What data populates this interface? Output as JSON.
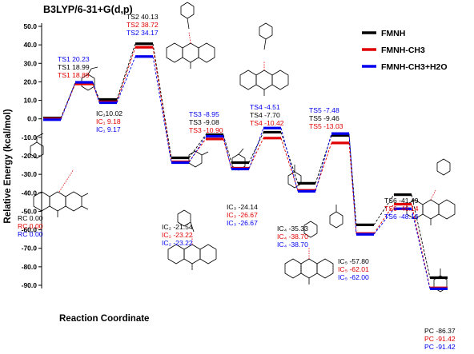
{
  "chart_data": {
    "type": "line",
    "title": "B3LYP/6-31+G(d,p)",
    "xlabel": "Reaction Coordinate",
    "ylabel": "Relative Energy (kcal/mol)",
    "ylim": [
      -95,
      55
    ],
    "yticks": [
      "50.0",
      "40.0",
      "30.0",
      "20.0",
      "10.0",
      "0.0",
      "-10.0",
      "-20.0",
      "-30.0",
      "-40.0",
      "-50.0",
      "-60.0",
      "-70.0",
      "-80.0",
      "-90.0"
    ],
    "stationary_points": [
      "RC",
      "TS1",
      "IC1",
      "TS2",
      "IC2",
      "TS3",
      "IC3",
      "TS4",
      "IC4",
      "TS5",
      "IC5",
      "TS6",
      "PC"
    ],
    "series": [
      {
        "name": "FMNH",
        "color": "#000000",
        "values": [
          0.0,
          18.99,
          10.02,
          40.13,
          -21.54,
          -9.08,
          -24.14,
          -7.7,
          -35.33,
          -9.46,
          -57.8,
          -41.49,
          -86.37
        ]
      },
      {
        "name": "FMNH-CH3",
        "color": "#e00000",
        "values": [
          0.0,
          18.89,
          9.18,
          38.72,
          -23.22,
          -10.9,
          -26.67,
          -10.42,
          -38.7,
          -13.03,
          -62.01,
          -46.14,
          -91.42
        ]
      },
      {
        "name": "FMNH-CH3+H2O",
        "color": "#0000ee",
        "values": [
          0.0,
          20.23,
          9.17,
          34.17,
          -23.22,
          -8.95,
          -26.67,
          -4.51,
          -38.7,
          -7.48,
          -62.0,
          -48.16,
          -91.42
        ]
      }
    ],
    "labels": [
      {
        "point": "RC",
        "lines": [
          {
            "text": "RC 0.00",
            "color": "#000000"
          },
          {
            "text": "RC 0.00",
            "color": "#e00000"
          },
          {
            "text": "RC 0.00",
            "color": "#0000ee"
          }
        ]
      },
      {
        "point": "TS1",
        "lines": [
          {
            "text": "TS1 20.23",
            "color": "#0000ee"
          },
          {
            "text": "TS1 18.99",
            "color": "#000000"
          },
          {
            "text": "TS1 18.89",
            "color": "#e00000"
          }
        ]
      },
      {
        "point": "IC1",
        "lines": [
          {
            "text": "IC₁10.02",
            "color": "#000000"
          },
          {
            "text": "IC₁ 9.18",
            "color": "#e00000"
          },
          {
            "text": "IC₁ 9.17",
            "color": "#0000ee"
          }
        ]
      },
      {
        "point": "TS2",
        "lines": [
          {
            "text": "TS2 40.13",
            "color": "#000000"
          },
          {
            "text": "TS2 38.72",
            "color": "#e00000"
          },
          {
            "text": "TS2 34.17",
            "color": "#0000ee"
          }
        ]
      },
      {
        "point": "IC2",
        "lines": [
          {
            "text": "IC₂ -21.54",
            "color": "#000000"
          },
          {
            "text": "IC₂ -23.22",
            "color": "#e00000"
          },
          {
            "text": "IC₂ -23.22",
            "color": "#0000ee"
          }
        ]
      },
      {
        "point": "TS3",
        "lines": [
          {
            "text": "TS3 -8.95",
            "color": "#0000ee"
          },
          {
            "text": "TS3 -9.08",
            "color": "#000000"
          },
          {
            "text": "TS3 -10.90",
            "color": "#e00000"
          }
        ]
      },
      {
        "point": "IC3",
        "lines": [
          {
            "text": "IC₃ -24.14",
            "color": "#000000"
          },
          {
            "text": "IC₃ -26.67",
            "color": "#e00000"
          },
          {
            "text": "IC₃ -26.67",
            "color": "#0000ee"
          }
        ]
      },
      {
        "point": "TS4",
        "lines": [
          {
            "text": "TS4 -4.51",
            "color": "#0000ee"
          },
          {
            "text": "TS4 -7.70",
            "color": "#000000"
          },
          {
            "text": "TS4 -10.42",
            "color": "#e00000"
          }
        ]
      },
      {
        "point": "IC4",
        "lines": [
          {
            "text": "IC₄ -35.33",
            "color": "#000000"
          },
          {
            "text": "IC₄ -38.70",
            "color": "#e00000"
          },
          {
            "text": "IC₄ -38.70",
            "color": "#0000ee"
          }
        ]
      },
      {
        "point": "TS5",
        "lines": [
          {
            "text": "TS5 -7.48",
            "color": "#0000ee"
          },
          {
            "text": "TS5 -9.46",
            "color": "#000000"
          },
          {
            "text": "TS5 -13.03",
            "color": "#e00000"
          }
        ]
      },
      {
        "point": "IC5",
        "lines": [
          {
            "text": "IC₅ -57.80",
            "color": "#000000"
          },
          {
            "text": "IC₅ -62.01",
            "color": "#e00000"
          },
          {
            "text": "IC₅ -62.00",
            "color": "#0000ee"
          }
        ]
      },
      {
        "point": "TS6",
        "lines": [
          {
            "text": "TS6 -41.49",
            "color": "#000000"
          },
          {
            "text": "TS6 -46.14",
            "color": "#e00000"
          },
          {
            "text": "TS6 -48.16",
            "color": "#0000ee"
          }
        ]
      },
      {
        "point": "PC",
        "lines": [
          {
            "text": "PC -86.37",
            "color": "#000000"
          },
          {
            "text": "PC -91.42",
            "color": "#e00000"
          },
          {
            "text": "PC -91.42",
            "color": "#0000ee"
          }
        ]
      }
    ],
    "legend_position": "top-right",
    "grid": false
  }
}
